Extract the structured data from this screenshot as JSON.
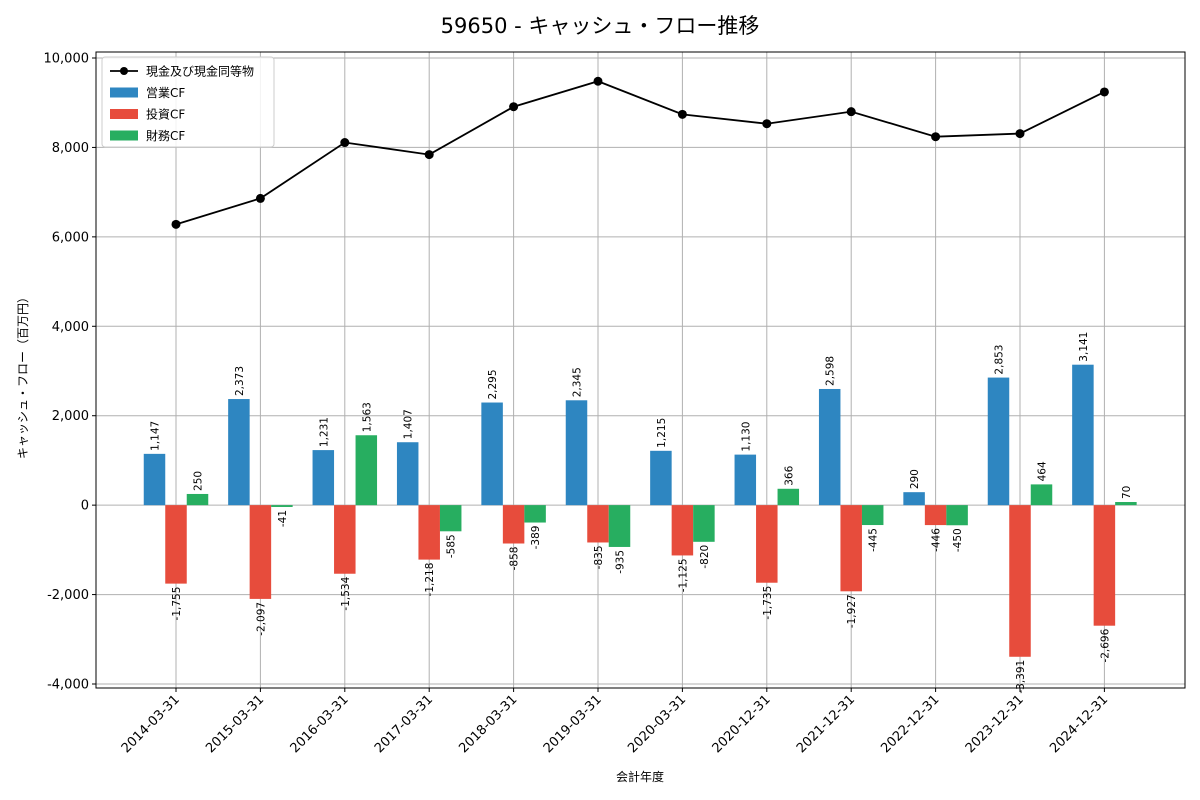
{
  "chart_data": {
    "type": "bar+line",
    "title": "59650 - キャッシュ・フロー推移",
    "xlabel": "会計年度",
    "ylabel": "キャッシュ・フロー（百万円）",
    "ylim": [
      -4000,
      10000
    ],
    "yticks": [
      -4000,
      -2000,
      0,
      2000,
      4000,
      6000,
      8000,
      10000
    ],
    "ytick_labels": [
      "-4,000",
      "-2,000",
      "0",
      "2,000",
      "4,000",
      "6,000",
      "8,000",
      "10,000"
    ],
    "grid": true,
    "legend_position": "top-left",
    "categories": [
      "2014-03-31",
      "2015-03-31",
      "2016-03-31",
      "2017-03-31",
      "2018-03-31",
      "2019-03-31",
      "2020-03-31",
      "2020-12-31",
      "2021-12-31",
      "2022-12-31",
      "2023-12-31",
      "2024-12-31"
    ],
    "series": [
      {
        "name": "現金及び現金同等物",
        "type": "line",
        "color": "#000000",
        "values": [
          6280,
          6860,
          8110,
          7840,
          8910,
          9480,
          8740,
          8530,
          8800,
          8240,
          8310,
          9240
        ]
      },
      {
        "name": "営業CF",
        "type": "bar",
        "color": "#2e86c1",
        "values": [
          1147,
          2373,
          1231,
          1407,
          2295,
          2345,
          1215,
          1130,
          2598,
          290,
          2853,
          3141
        ],
        "labels": [
          "1,147",
          "2,373",
          "1,231",
          "1,407",
          "2,295",
          "2,345",
          "1,215",
          "1,130",
          "2,598",
          "290",
          "2,853",
          "3,141"
        ]
      },
      {
        "name": "投資CF",
        "type": "bar",
        "color": "#e74c3c",
        "values": [
          -1755,
          -2097,
          -1534,
          -1218,
          -858,
          -835,
          -1125,
          -1735,
          -1927,
          -446,
          -3391,
          -2696
        ],
        "labels": [
          "-1,755",
          "-2,097",
          "-1,534",
          "-1,218",
          "-858",
          "-835",
          "-1,125",
          "-1,735",
          "-1,927",
          "-446",
          "-3,391",
          "-2,696"
        ]
      },
      {
        "name": "財務CF",
        "type": "bar",
        "color": "#27ae60",
        "values": [
          250,
          -41,
          1563,
          -585,
          -389,
          -935,
          -820,
          366,
          -445,
          -450,
          464,
          70
        ],
        "labels": [
          "250",
          "-41",
          "1,563",
          "-585",
          "-389",
          "-935",
          "-820",
          "366",
          "-445",
          "-450",
          "464",
          "70"
        ]
      }
    ]
  }
}
